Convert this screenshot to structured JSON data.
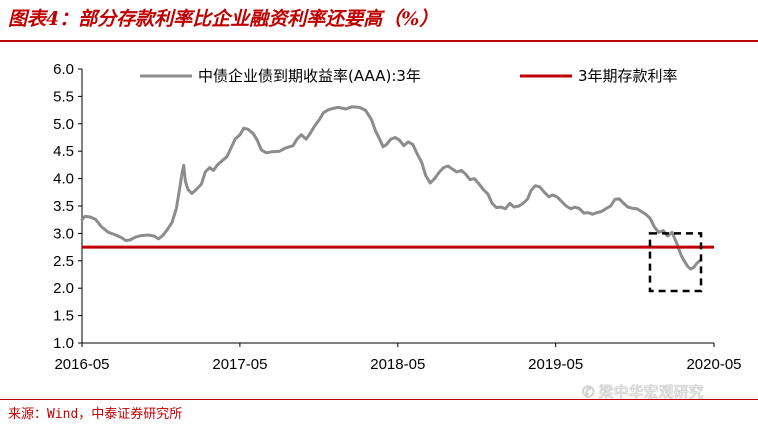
{
  "title": "图表4：部分存款利率比企业融资利率还要高（%）",
  "source": "来源：Wind，中泰证券研究所",
  "watermark": "梁中华宏观研究",
  "chart_data": {
    "type": "line",
    "x_start": "2016-05",
    "x_end": "2020-05",
    "xticks": [
      "2016-05",
      "2017-05",
      "2018-05",
      "2019-05",
      "2020-05"
    ],
    "ylim": [
      1.0,
      6.0
    ],
    "yticks": [
      "1.0",
      "1.5",
      "2.0",
      "2.5",
      "3.0",
      "3.5",
      "4.0",
      "4.5",
      "5.0",
      "5.5",
      "6.0"
    ],
    "grid": false,
    "legend_position": "top",
    "series": [
      {
        "name": "中债企业债到期收益率(AAA):3年",
        "color": "#8c8c8c",
        "points": [
          [
            "2016-05-01",
            3.25
          ],
          [
            "2016-05-08",
            3.31
          ],
          [
            "2016-05-20",
            3.3
          ],
          [
            "2016-06-01",
            3.26
          ],
          [
            "2016-06-15",
            3.12
          ],
          [
            "2016-07-01",
            3.02
          ],
          [
            "2016-07-15",
            2.98
          ],
          [
            "2016-08-01",
            2.92
          ],
          [
            "2016-08-10",
            2.87
          ],
          [
            "2016-08-20",
            2.88
          ],
          [
            "2016-09-01",
            2.93
          ],
          [
            "2016-09-15",
            2.96
          ],
          [
            "2016-10-01",
            2.97
          ],
          [
            "2016-10-15",
            2.95
          ],
          [
            "2016-10-25",
            2.9
          ],
          [
            "2016-11-05",
            2.97
          ],
          [
            "2016-11-15",
            3.08
          ],
          [
            "2016-11-25",
            3.2
          ],
          [
            "2016-12-05",
            3.45
          ],
          [
            "2016-12-12",
            3.78
          ],
          [
            "2016-12-18",
            4.08
          ],
          [
            "2016-12-22",
            4.24
          ],
          [
            "2016-12-26",
            3.95
          ],
          [
            "2017-01-01",
            3.8
          ],
          [
            "2017-01-10",
            3.73
          ],
          [
            "2017-01-20",
            3.8
          ],
          [
            "2017-02-01",
            3.9
          ],
          [
            "2017-02-10",
            4.12
          ],
          [
            "2017-02-20",
            4.2
          ],
          [
            "2017-03-01",
            4.15
          ],
          [
            "2017-03-10",
            4.25
          ],
          [
            "2017-03-20",
            4.32
          ],
          [
            "2017-04-01",
            4.4
          ],
          [
            "2017-04-10",
            4.55
          ],
          [
            "2017-04-20",
            4.72
          ],
          [
            "2017-05-01",
            4.8
          ],
          [
            "2017-05-10",
            4.92
          ],
          [
            "2017-05-20",
            4.9
          ],
          [
            "2017-06-01",
            4.82
          ],
          [
            "2017-06-10",
            4.7
          ],
          [
            "2017-06-20",
            4.52
          ],
          [
            "2017-07-01",
            4.47
          ],
          [
            "2017-07-15",
            4.49
          ],
          [
            "2017-08-01",
            4.5
          ],
          [
            "2017-08-15",
            4.56
          ],
          [
            "2017-09-01",
            4.6
          ],
          [
            "2017-09-10",
            4.72
          ],
          [
            "2017-09-20",
            4.8
          ],
          [
            "2017-10-01",
            4.72
          ],
          [
            "2017-10-10",
            4.82
          ],
          [
            "2017-10-20",
            4.95
          ],
          [
            "2017-11-01",
            5.08
          ],
          [
            "2017-11-10",
            5.2
          ],
          [
            "2017-11-20",
            5.25
          ],
          [
            "2017-12-01",
            5.28
          ],
          [
            "2017-12-15",
            5.3
          ],
          [
            "2018-01-01",
            5.27
          ],
          [
            "2018-01-15",
            5.31
          ],
          [
            "2018-02-01",
            5.3
          ],
          [
            "2018-02-15",
            5.25
          ],
          [
            "2018-03-01",
            5.08
          ],
          [
            "2018-03-10",
            4.88
          ],
          [
            "2018-03-20",
            4.72
          ],
          [
            "2018-03-28",
            4.58
          ],
          [
            "2018-04-05",
            4.62
          ],
          [
            "2018-04-15",
            4.72
          ],
          [
            "2018-04-25",
            4.75
          ],
          [
            "2018-05-05",
            4.7
          ],
          [
            "2018-05-15",
            4.6
          ],
          [
            "2018-05-25",
            4.67
          ],
          [
            "2018-06-05",
            4.62
          ],
          [
            "2018-06-15",
            4.45
          ],
          [
            "2018-06-25",
            4.3
          ],
          [
            "2018-07-05",
            4.05
          ],
          [
            "2018-07-15",
            3.92
          ],
          [
            "2018-07-25",
            4.0
          ],
          [
            "2018-08-05",
            4.12
          ],
          [
            "2018-08-15",
            4.2
          ],
          [
            "2018-08-25",
            4.23
          ],
          [
            "2018-09-05",
            4.17
          ],
          [
            "2018-09-15",
            4.12
          ],
          [
            "2018-09-25",
            4.15
          ],
          [
            "2018-10-05",
            4.08
          ],
          [
            "2018-10-15",
            3.98
          ],
          [
            "2018-10-25",
            4.0
          ],
          [
            "2018-11-05",
            3.9
          ],
          [
            "2018-11-15",
            3.8
          ],
          [
            "2018-11-25",
            3.72
          ],
          [
            "2018-12-05",
            3.55
          ],
          [
            "2018-12-15",
            3.47
          ],
          [
            "2018-12-25",
            3.48
          ],
          [
            "2019-01-05",
            3.45
          ],
          [
            "2019-01-15",
            3.55
          ],
          [
            "2019-01-25",
            3.48
          ],
          [
            "2019-02-05",
            3.5
          ],
          [
            "2019-02-15",
            3.55
          ],
          [
            "2019-02-25",
            3.63
          ],
          [
            "2019-03-05",
            3.78
          ],
          [
            "2019-03-15",
            3.87
          ],
          [
            "2019-03-25",
            3.85
          ],
          [
            "2019-04-05",
            3.75
          ],
          [
            "2019-04-15",
            3.67
          ],
          [
            "2019-04-25",
            3.7
          ],
          [
            "2019-05-05",
            3.66
          ],
          [
            "2019-05-15",
            3.58
          ],
          [
            "2019-05-25",
            3.5
          ],
          [
            "2019-06-05",
            3.45
          ],
          [
            "2019-06-15",
            3.48
          ],
          [
            "2019-06-25",
            3.45
          ],
          [
            "2019-07-05",
            3.37
          ],
          [
            "2019-07-15",
            3.38
          ],
          [
            "2019-07-25",
            3.35
          ],
          [
            "2019-08-05",
            3.38
          ],
          [
            "2019-08-15",
            3.4
          ],
          [
            "2019-08-25",
            3.45
          ],
          [
            "2019-09-05",
            3.5
          ],
          [
            "2019-09-15",
            3.62
          ],
          [
            "2019-09-25",
            3.63
          ],
          [
            "2019-10-05",
            3.55
          ],
          [
            "2019-10-15",
            3.48
          ],
          [
            "2019-10-25",
            3.46
          ],
          [
            "2019-11-05",
            3.45
          ],
          [
            "2019-11-15",
            3.4
          ],
          [
            "2019-11-25",
            3.35
          ],
          [
            "2019-12-05",
            3.28
          ],
          [
            "2019-12-15",
            3.12
          ],
          [
            "2019-12-25",
            3.02
          ],
          [
            "2020-01-05",
            3.05
          ],
          [
            "2020-01-15",
            2.95
          ],
          [
            "2020-01-25",
            3.02
          ],
          [
            "2020-02-05",
            2.82
          ],
          [
            "2020-02-15",
            2.6
          ],
          [
            "2020-02-22",
            2.5
          ],
          [
            "2020-03-01",
            2.4
          ],
          [
            "2020-03-08",
            2.35
          ],
          [
            "2020-03-15",
            2.38
          ],
          [
            "2020-03-22",
            2.45
          ],
          [
            "2020-03-29",
            2.5
          ]
        ]
      },
      {
        "name": "3年期存款利率",
        "color": "#c00000",
        "constant": 2.75
      }
    ],
    "annotation": {
      "type": "dashed-box",
      "x_range": [
        "2019-12-05",
        "2020-04-01"
      ],
      "y_range": [
        1.95,
        3.0
      ]
    }
  }
}
